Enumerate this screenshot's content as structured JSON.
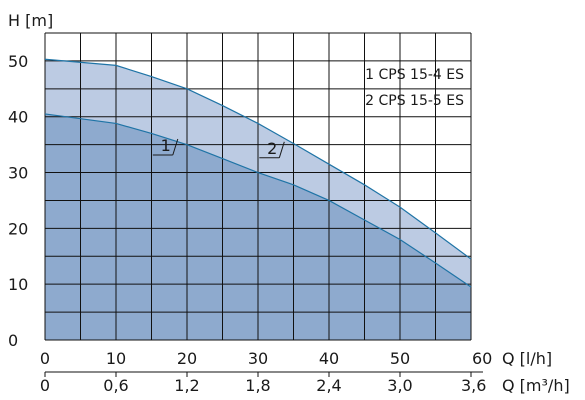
{
  "chart_data": {
    "type": "area",
    "ylabel": "H [m]",
    "xlabel": "Q [l/h]",
    "xlabel2": "Q [m³/h]",
    "xlim": [
      0,
      60
    ],
    "ylim": [
      0,
      55
    ],
    "grid": true,
    "x_ticks": [
      "0",
      "10",
      "20",
      "30",
      "40",
      "50",
      "60"
    ],
    "x2_ticks": [
      "0",
      "0,6",
      "1,2",
      "1,8",
      "2,4",
      "3,0",
      "3,6"
    ],
    "y_ticks": [
      "0",
      "10",
      "20",
      "30",
      "40",
      "50"
    ],
    "legend": [
      "1 CPS 15-4 ES",
      "2 CPS 15-5 ES"
    ],
    "colors": {
      "curve1_fill": "#8eaace",
      "curve2_fill": "#bccbe3",
      "curve_line": "#1f74a6",
      "grid": "#111111"
    },
    "series": [
      {
        "label": "1",
        "x": [
          0,
          10,
          15,
          20,
          25,
          30,
          35,
          40,
          45,
          50,
          55,
          60
        ],
        "y": [
          40.5,
          38.8,
          37,
          35,
          32.5,
          30,
          27.8,
          25,
          21.5,
          18,
          13.8,
          9.5
        ]
      },
      {
        "label": "2",
        "x": [
          0,
          10,
          15,
          20,
          25,
          30,
          35,
          40,
          45,
          50,
          55,
          60
        ],
        "y": [
          50.3,
          49.2,
          47.2,
          45,
          42,
          38.8,
          35.2,
          31.5,
          27.8,
          23.8,
          19.2,
          14.5
        ]
      }
    ],
    "curve_label_positions": [
      {
        "label": "1",
        "x": 18,
        "y": 33.5
      },
      {
        "label": "2",
        "x": 33,
        "y": 33
      }
    ]
  }
}
